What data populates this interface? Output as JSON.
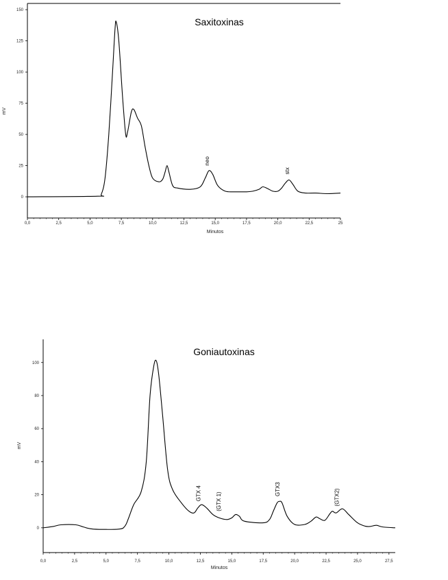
{
  "chart_data": [
    {
      "type": "line",
      "title": "Saxitoxinas",
      "xlabel": "Minutos",
      "ylabel": "mV",
      "xlim": [
        0,
        25
      ],
      "ylim": [
        -17,
        155
      ],
      "x_ticks": [
        "0,0",
        "2,5",
        "5,0",
        "7,5",
        "10,0",
        "12,5",
        "15,0",
        "17,5",
        "20,0",
        "22,5",
        "25"
      ],
      "y_ticks": [
        "0",
        "25",
        "50",
        "75",
        "100",
        "125",
        "150"
      ],
      "grid": false,
      "series": [
        {
          "x": [
            0,
            5.6,
            5.9,
            6.2,
            6.5,
            6.8,
            7.0,
            7.1,
            7.3,
            7.6,
            7.85,
            8.0,
            8.3,
            8.5,
            8.8,
            9.1,
            9.4,
            9.7,
            10.0,
            10.5,
            10.8,
            11.0,
            11.15,
            11.3,
            11.6,
            12.0,
            13.0,
            13.8,
            14.2,
            14.5,
            14.8,
            15.2,
            15.8,
            16.5,
            17.0,
            17.5,
            18.0,
            18.5,
            18.8,
            19.2,
            19.6,
            20.0,
            20.3,
            20.6,
            20.9,
            21.2,
            21.6,
            22.2,
            23.0,
            24.0,
            25.0
          ],
          "y": [
            0,
            0.5,
            2,
            15,
            50,
            100,
            135,
            140,
            125,
            80,
            50,
            52,
            68,
            70,
            63,
            57,
            40,
            25,
            15,
            12,
            14,
            20,
            25,
            20,
            9,
            7,
            6,
            8,
            15,
            21,
            18,
            9,
            4.5,
            4,
            4,
            4,
            4.5,
            6,
            8,
            6.5,
            4.5,
            4.5,
            7,
            11,
            13.5,
            10,
            4.5,
            3,
            3,
            2.5,
            3
          ]
        }
      ],
      "annotations": [
        {
          "text": "neo",
          "x": 14.5,
          "y": 25
        },
        {
          "text": "stx",
          "x": 20.9,
          "y": 18
        }
      ]
    },
    {
      "type": "line",
      "title": "Goniautoxinas",
      "xlabel": "Minutos",
      "ylabel": "mV",
      "xlim": [
        0,
        28
      ],
      "ylim": [
        -15,
        114
      ],
      "x_ticks": [
        "0,0",
        "2,5",
        "5,0",
        "7,5",
        "10,0",
        "12,5",
        "15,0",
        "17,5",
        "20,0",
        "22,5",
        "25,0",
        "27,5"
      ],
      "y_ticks": [
        "0",
        "20",
        "40",
        "60",
        "80",
        "100"
      ],
      "grid": false,
      "series": [
        {
          "x": [
            0,
            0.8,
            1.4,
            2.6,
            3.2,
            4.0,
            6.0,
            6.5,
            6.8,
            7.2,
            7.8,
            8.2,
            8.5,
            8.8,
            9.0,
            9.2,
            9.5,
            9.9,
            10.3,
            11.0,
            11.6,
            12.0,
            12.3,
            12.6,
            13.0,
            13.5,
            14.0,
            14.6,
            15.0,
            15.3,
            15.6,
            16.0,
            17.5,
            18.0,
            18.3,
            18.6,
            18.8,
            19.0,
            19.4,
            20.0,
            20.8,
            21.3,
            21.7,
            22.0,
            22.4,
            22.8,
            23.0,
            23.3,
            23.8,
            24.3,
            25.0,
            25.6,
            26.0,
            26.5,
            27.0,
            28.0
          ],
          "y": [
            0,
            0.8,
            1.8,
            1.8,
            0.5,
            -0.8,
            -0.8,
            1,
            6,
            14,
            22,
            40,
            80,
            98,
            101,
            92,
            68,
            35,
            23,
            15,
            10,
            9,
            12,
            14,
            12,
            8,
            6,
            5,
            6,
            8,
            7,
            4,
            3,
            5,
            10,
            15,
            16,
            15,
            7,
            2,
            2,
            4,
            6.5,
            5.5,
            4.5,
            8.5,
            10,
            9,
            11.5,
            8,
            3,
            1,
            0.8,
            1.5,
            0.5,
            0
          ]
        }
      ],
      "annotations": [
        {
          "text": "GTX 4",
          "x": 12.5,
          "y": 16
        },
        {
          "text": "(GTX 1)",
          "x": 14.1,
          "y": 10
        },
        {
          "text": "GTX3",
          "x": 18.8,
          "y": 19
        },
        {
          "text": "(GTX2)",
          "x": 23.5,
          "y": 13
        }
      ]
    }
  ]
}
